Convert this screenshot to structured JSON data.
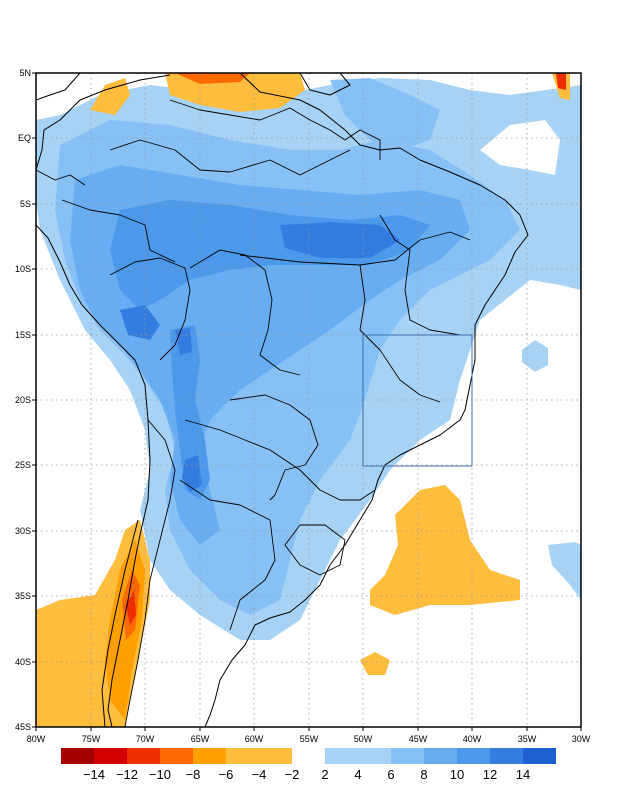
{
  "map": {
    "type": "anomaly-contour-map",
    "region": "South America",
    "longitude_labels": [
      "80W",
      "75W",
      "70W",
      "65W",
      "60W",
      "55W",
      "50W",
      "45W",
      "40W",
      "35W",
      "30W"
    ],
    "latitude_labels": [
      "5N",
      "EQ",
      "5S",
      "10S",
      "15S",
      "20S",
      "25S",
      "30S",
      "35S",
      "40S",
      "45S"
    ],
    "domain": {
      "lon_min": -80,
      "lon_max": -30,
      "lat_min": -45,
      "lat_max": 5
    },
    "highlight_box": {
      "lon_min": -50,
      "lon_max": -40,
      "lat_min": -25,
      "lat_max": -15,
      "color": "#3f6fb5"
    }
  },
  "colorbar": {
    "negative_labels": [
      "−14",
      "−12",
      "−10",
      "−8",
      "−6",
      "−4",
      "−2"
    ],
    "positive_labels": [
      "2",
      "4",
      "6",
      "8",
      "10",
      "12",
      "14"
    ],
    "negative_colors": [
      "#a50000",
      "#d40000",
      "#ee2d00",
      "#ff6a00",
      "#ffa000",
      "#ffbd3d"
    ],
    "positive_colors": [
      "#a6d2f5",
      "#87c0f5",
      "#68adf2",
      "#4c98eb",
      "#347de0",
      "#1e5fd2"
    ]
  }
}
